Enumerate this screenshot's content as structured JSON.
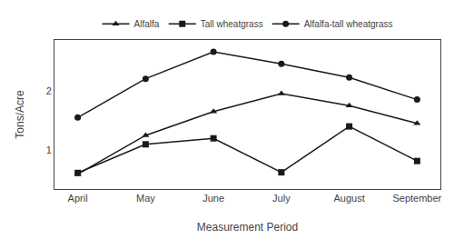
{
  "chart_data": {
    "type": "line",
    "categories": [
      "April",
      "May",
      "June",
      "July",
      "August",
      "September"
    ],
    "series": [
      {
        "name": "Alfalfa",
        "color": "#1a1a1a",
        "marker": "triangle",
        "values": [
          0.6,
          1.25,
          1.65,
          1.95,
          1.75,
          1.45
        ]
      },
      {
        "name": "Tall wheatgrass",
        "color": "#1a1a1a",
        "marker": "square",
        "values": [
          0.62,
          1.1,
          1.2,
          0.63,
          1.4,
          0.82
        ]
      },
      {
        "name": "Alfalfa-tall wheatgrass",
        "color": "#1a1a1a",
        "marker": "circle",
        "values": [
          1.55,
          2.2,
          2.65,
          2.45,
          2.22,
          1.85
        ]
      }
    ],
    "xlabel": "Measurement Period",
    "ylabel": "Tons/Acre",
    "ylim": [
      0.35,
      2.85
    ],
    "yticks": [
      1,
      2
    ],
    "grid": false,
    "legend": "top"
  }
}
